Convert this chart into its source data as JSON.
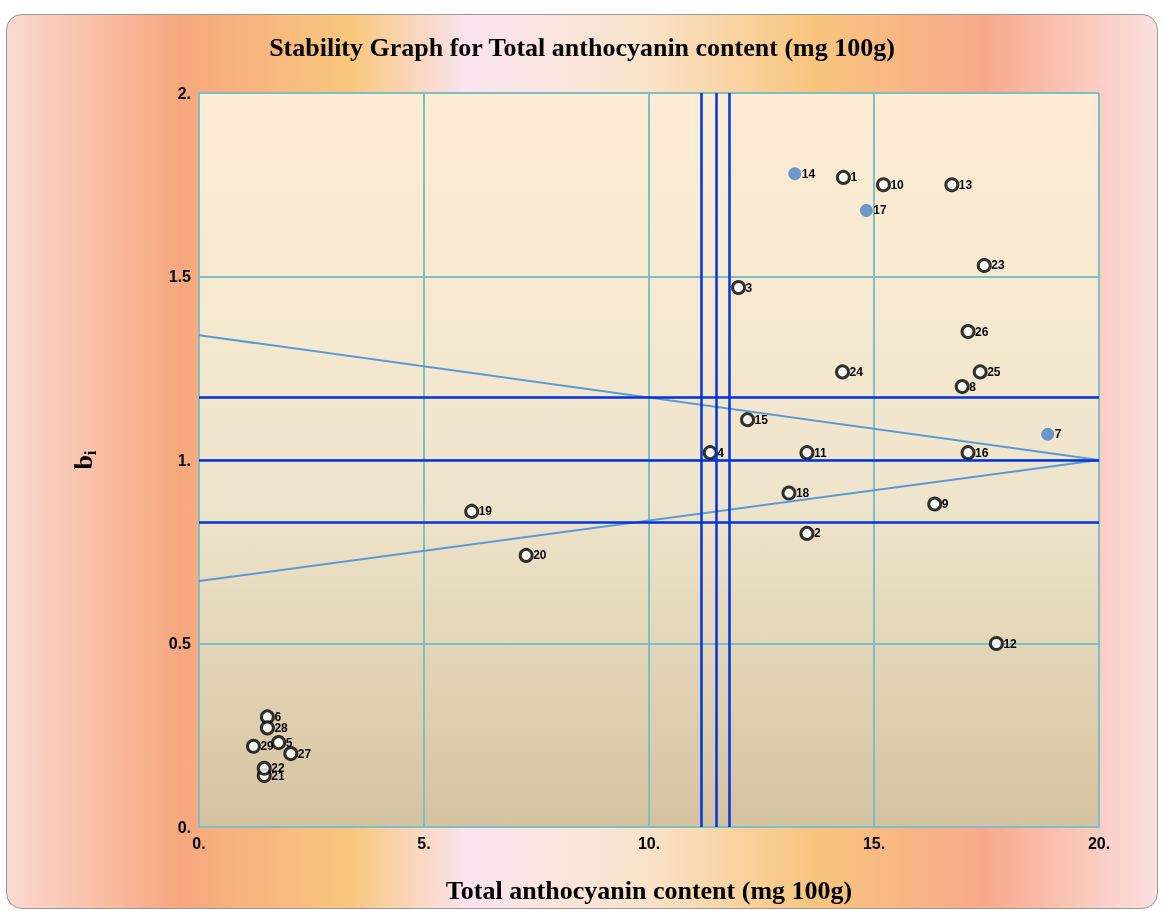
{
  "chart_data": {
    "type": "scatter",
    "title": "Stability Graph for Total anthocyanin content (mg 100g)",
    "xlabel": "Total anthocyanin content (mg 100g)",
    "ylabel": "b$_{i}$",
    "xlim": [
      0,
      20
    ],
    "ylim": [
      0,
      2
    ],
    "xticks": [
      {
        "value": 0,
        "label": "0."
      },
      {
        "value": 5,
        "label": "5."
      },
      {
        "value": 10,
        "label": "10."
      },
      {
        "value": 15,
        "label": "15."
      },
      {
        "value": 20,
        "label": "20."
      }
    ],
    "yticks": [
      {
        "value": 0,
        "label": "0."
      },
      {
        "value": 0.5,
        "label": "0.5"
      },
      {
        "value": 1,
        "label": "1."
      },
      {
        "value": 1.5,
        "label": "1.5"
      },
      {
        "value": 2,
        "label": "2."
      }
    ],
    "grid": true,
    "marker": "circle",
    "series": [
      {
        "color": "#000000",
        "x": [
          14.32,
          13.51,
          11.99,
          11.36,
          1.77,
          1.52,
          16.96,
          16.35,
          15.21,
          13.51,
          17.72,
          16.73,
          12.19,
          17.09,
          13.11,
          6.06,
          7.27,
          1.45,
          1.45,
          17.45,
          14.3,
          17.36,
          17.09,
          2.04,
          1.52,
          1.21
        ],
        "values": [
          1.77,
          0.8,
          1.47,
          1.02,
          0.23,
          0.3,
          1.2,
          0.88,
          1.75,
          1.02,
          0.5,
          1.75,
          1.11,
          1.02,
          0.91,
          0.86,
          0.74,
          0.14,
          0.16,
          1.53,
          1.24,
          1.24,
          1.35,
          0.2,
          0.27,
          0.22
        ]
      },
      {
        "color": "#4a86c5",
        "x": [
          18.86,
          13.24,
          14.83
        ],
        "values": [
          1.07,
          1.78,
          1.68
        ]
      },
      {
        "type": "line",
        "marker": "none",
        "color": "#5b9bd5",
        "x": [
          0,
          20
        ],
        "values": [
          1.34,
          1.0
        ]
      },
      {
        "type": "line",
        "marker": "none",
        "color": "#5b9bd5",
        "x": [
          0,
          20
        ],
        "values": [
          0.67,
          1.0
        ]
      }
    ],
    "ref_lines": [
      {
        "axis": "y",
        "value": 1.17,
        "color": "#0033dd"
      },
      {
        "axis": "y",
        "value": 1,
        "color": "#0033dd"
      },
      {
        "axis": "y",
        "value": 0.83,
        "color": "#0033dd"
      },
      {
        "axis": "x",
        "value": 11.16,
        "color": "#0033dd"
      },
      {
        "axis": "x",
        "value": 11.5,
        "color": "#0033dd"
      },
      {
        "axis": "x",
        "value": 11.79,
        "color": "#0033dd"
      }
    ],
    "annotations": [
      {
        "text": "1",
        "x": 14.32,
        "y": 1.77
      },
      {
        "text": "2",
        "x": 13.51,
        "y": 0.8
      },
      {
        "text": "3",
        "x": 11.99,
        "y": 1.47
      },
      {
        "text": "4",
        "x": 11.36,
        "y": 1.02
      },
      {
        "text": "5",
        "x": 1.77,
        "y": 0.23
      },
      {
        "text": "6",
        "x": 1.52,
        "y": 0.3
      },
      {
        "text": "7",
        "x": 18.86,
        "y": 1.07
      },
      {
        "text": "8",
        "x": 16.96,
        "y": 1.2
      },
      {
        "text": "9",
        "x": 16.35,
        "y": 0.88
      },
      {
        "text": "10",
        "x": 15.21,
        "y": 1.75
      },
      {
        "text": "11",
        "x": 13.51,
        "y": 1.02
      },
      {
        "text": "12",
        "x": 17.72,
        "y": 0.5
      },
      {
        "text": "13",
        "x": 16.73,
        "y": 1.75
      },
      {
        "text": "14",
        "x": 13.24,
        "y": 1.78
      },
      {
        "text": "15",
        "x": 12.19,
        "y": 1.11
      },
      {
        "text": "16",
        "x": 17.09,
        "y": 1.02
      },
      {
        "text": "17",
        "x": 14.83,
        "y": 1.68
      },
      {
        "text": "18",
        "x": 13.11,
        "y": 0.91
      },
      {
        "text": "19",
        "x": 6.06,
        "y": 0.86
      },
      {
        "text": "20",
        "x": 7.27,
        "y": 0.74
      },
      {
        "text": "21",
        "x": 1.45,
        "y": 0.14
      },
      {
        "text": "22",
        "x": 1.45,
        "y": 0.16
      },
      {
        "text": "23",
        "x": 17.45,
        "y": 1.53
      },
      {
        "text": "24",
        "x": 14.3,
        "y": 1.24
      },
      {
        "text": "25",
        "x": 17.36,
        "y": 1.24
      },
      {
        "text": "26",
        "x": 17.09,
        "y": 1.35
      },
      {
        "text": "27",
        "x": 2.04,
        "y": 0.2
      },
      {
        "text": "28",
        "x": 1.52,
        "y": 0.27
      },
      {
        "text": "29",
        "x": 1.21,
        "y": 0.22
      }
    ]
  }
}
